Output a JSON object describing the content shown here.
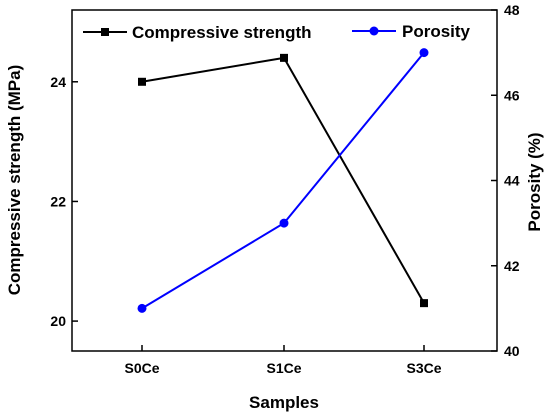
{
  "chart_data": {
    "type": "line",
    "categories": [
      "S0Ce",
      "S1Ce",
      "S3Ce"
    ],
    "xlabel": "Samples",
    "series": [
      {
        "name": "Compressive strength",
        "axis": "left",
        "color": "#000000",
        "marker": "square",
        "values": [
          24.0,
          24.4,
          20.3
        ]
      },
      {
        "name": "Porosity",
        "axis": "right",
        "color": "#0000ff",
        "marker": "circle",
        "values": [
          41.0,
          43.0,
          47.0
        ]
      }
    ],
    "y_left": {
      "label": "Compressive strength (MPa)",
      "range": [
        19.5,
        25.2
      ],
      "ticks": [
        "20",
        "22",
        "24"
      ]
    },
    "y_right": {
      "label": "Porosity (%)",
      "range": [
        40,
        48
      ],
      "ticks": [
        "40",
        "42",
        "44",
        "46",
        "48"
      ]
    },
    "grid": false,
    "legend": "top"
  }
}
